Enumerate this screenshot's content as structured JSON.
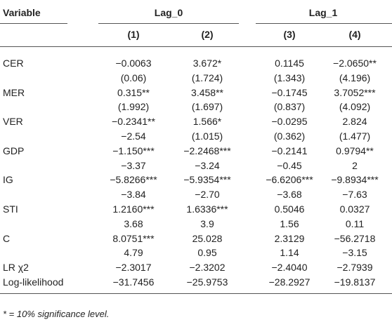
{
  "table": {
    "header": {
      "variable": "Variable",
      "groups": [
        "Lag_0",
        "Lag_1"
      ],
      "columns": [
        "(1)",
        "(2)",
        "(3)",
        "(4)"
      ]
    },
    "rows": [
      [
        "CER",
        "−0.0063",
        "3.672*",
        "0.1145",
        "−2.0650**"
      ],
      [
        null,
        "(0.06)",
        "(1.724)",
        "(1.343)",
        "(4.196)"
      ],
      [
        "MER",
        "0.315**",
        "3.458**",
        "−0.1745",
        "3.7052***"
      ],
      [
        null,
        "(1.992)",
        "(1.697)",
        "(0.837)",
        "(4.092)"
      ],
      [
        "VER",
        "−0.2341**",
        "1.566*",
        "−0.0295",
        "2.824"
      ],
      [
        null,
        "−2.54",
        "(1.015)",
        "(0.362)",
        "(1.477)"
      ],
      [
        "GDP",
        "−1.150***",
        "−2.2468***",
        "−0.2141",
        "0.9794**"
      ],
      [
        null,
        "−3.37",
        "−3.24",
        "−0.45",
        "2"
      ],
      [
        "IG",
        "−5.8266***",
        "−5.9354***",
        "−6.6206***",
        "−9.8934***"
      ],
      [
        null,
        "−3.84",
        "−2.70",
        "−3.68",
        "−7.63"
      ],
      [
        "STI",
        "1.2160***",
        "1.6336***",
        "0.5046",
        "0.0327"
      ],
      [
        null,
        "3.68",
        "3.9",
        "1.56",
        "0.11"
      ],
      [
        "C",
        "8.0751***",
        "25.028",
        "2.3129",
        "−56.2718"
      ],
      [
        null,
        "4.79",
        "0.95",
        "1.14",
        "−3.15"
      ],
      [
        "LR χ2",
        "−2.3017",
        "−2.3202",
        "−2.4040",
        "−2.7939"
      ],
      [
        "Log-likelihood",
        "−31.7456",
        "−25.9753",
        "−28.2927",
        "−19.8137"
      ]
    ],
    "footnote": "* = 10% significance level."
  }
}
